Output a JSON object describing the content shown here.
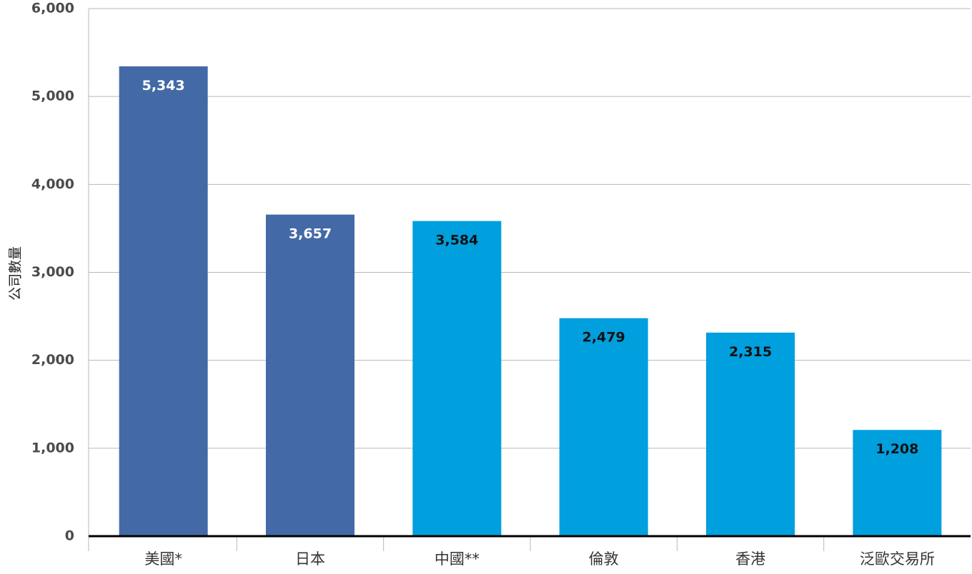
{
  "chart_data": {
    "type": "bar",
    "title": "",
    "xlabel": "",
    "ylabel": "公司數量",
    "categories": [
      "美國*",
      "日本",
      "中國**",
      "倫敦",
      "香港",
      "泛歐交易所"
    ],
    "values": [
      5343,
      3657,
      3584,
      2479,
      2315,
      1208
    ],
    "value_labels": [
      "5,343",
      "3,657",
      "3,584",
      "2,479",
      "2,315",
      "1,208"
    ],
    "ylim": [
      0,
      6000
    ],
    "yticks": [
      0,
      1000,
      2000,
      3000,
      4000,
      5000,
      6000
    ],
    "ytick_labels": [
      "0",
      "1,000",
      "2,000",
      "3,000",
      "4,000",
      "5,000",
      "6,000"
    ],
    "grid": true,
    "colors": {
      "dark_bar": "#436aa7",
      "light_bar": "#009fde",
      "grid": "#b8b8b8",
      "baseline": "#000000"
    },
    "bar_colors": [
      "dark_bar",
      "dark_bar",
      "light_bar",
      "light_bar",
      "light_bar",
      "light_bar"
    ],
    "label_colors": [
      "#ffffff",
      "#ffffff",
      "#111111",
      "#111111",
      "#111111",
      "#111111"
    ]
  }
}
